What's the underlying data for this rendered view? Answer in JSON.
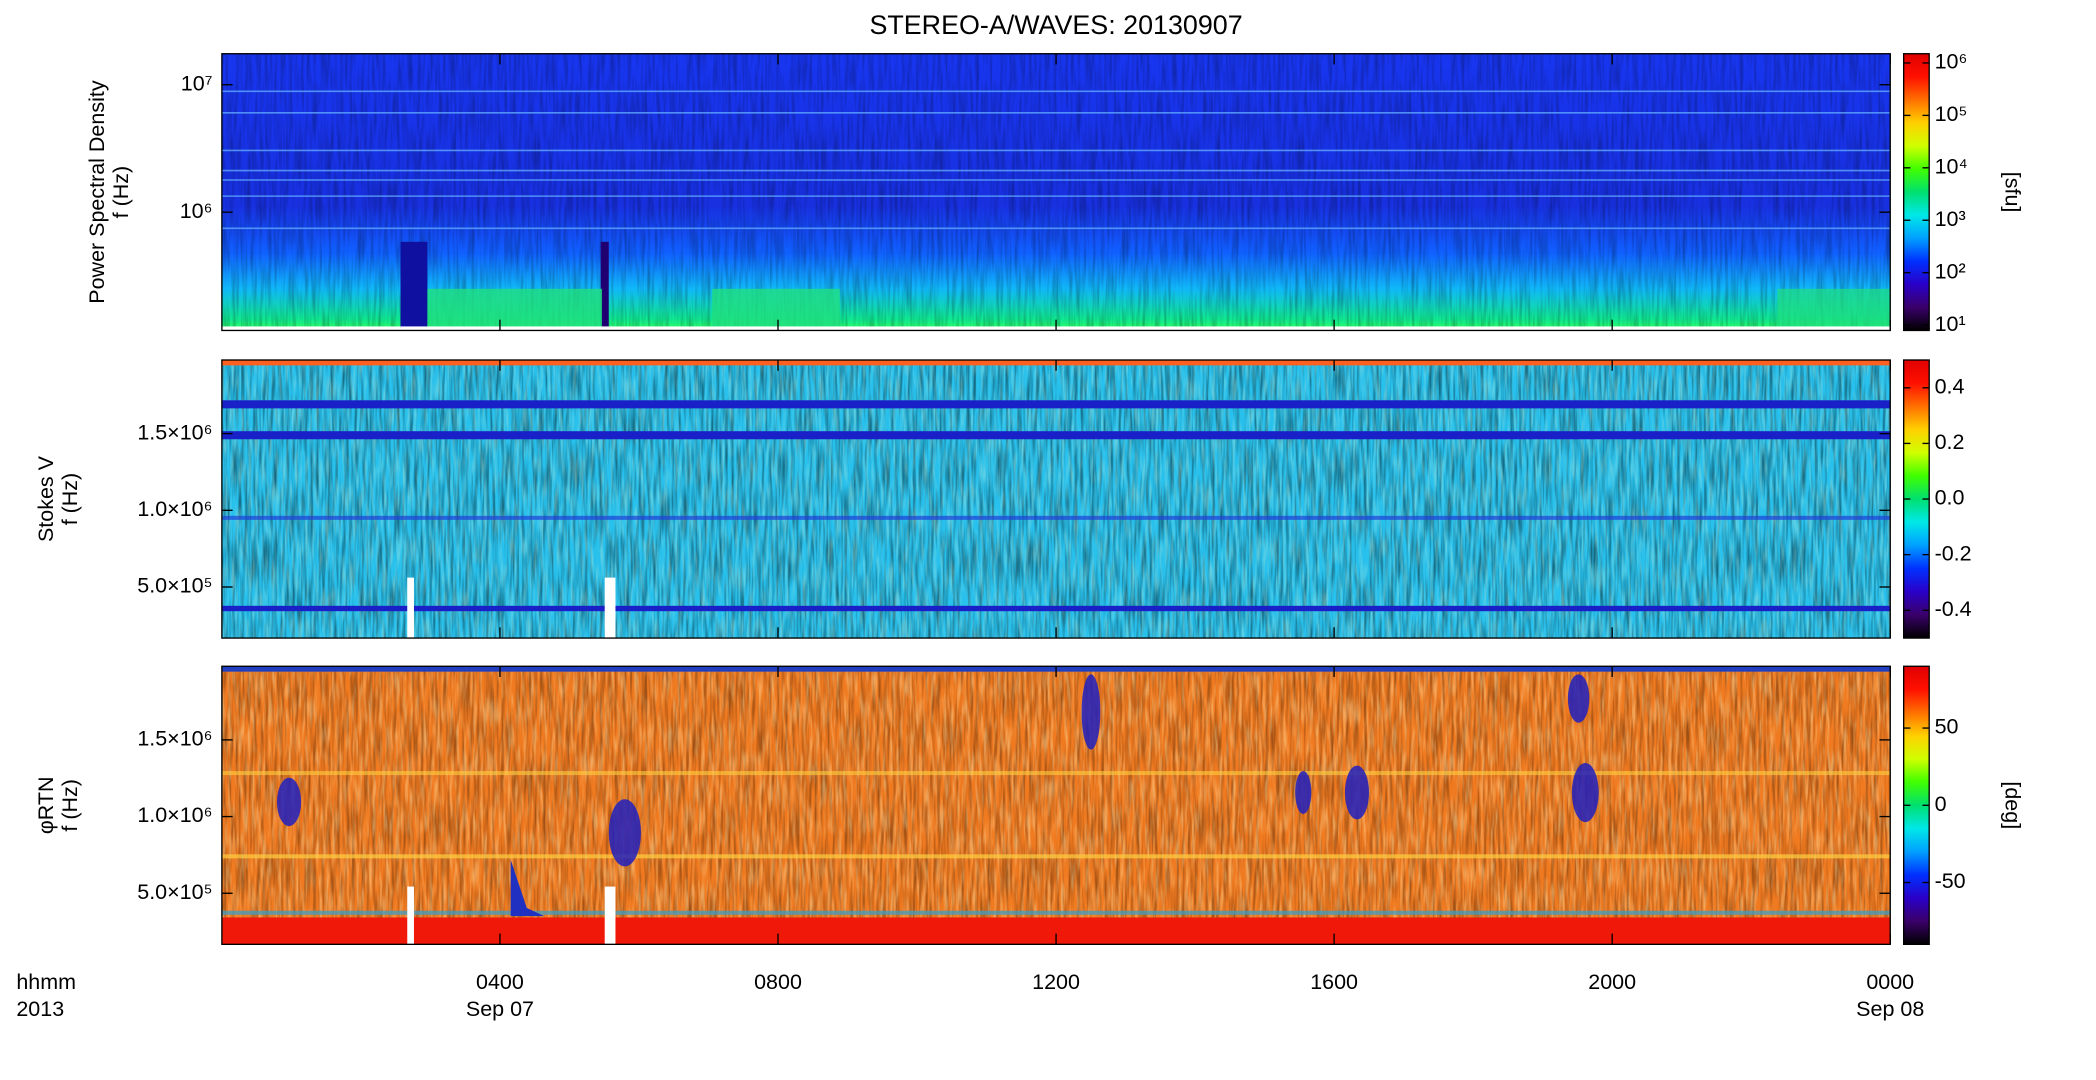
{
  "chart_data": [
    {
      "type": "heatmap",
      "title": "STEREO-A/WAVES: 20130907",
      "ylabel": [
        "Power Spectral Density",
        "f (Hz)"
      ],
      "xlim": [
        0,
        24
      ],
      "ylim": [
        118000,
        17500000
      ],
      "ylog": true,
      "yticks": [
        {
          "value": 1000000,
          "label": "10⁶"
        },
        {
          "value": 10000000,
          "label": "10⁷"
        }
      ],
      "colorbar": {
        "label": "[sfu]",
        "lim": [
          7.9,
          1500000
        ],
        "log": true,
        "ticks": [
          {
            "value": 10,
            "label": "10¹"
          },
          {
            "value": 100,
            "label": "10²"
          },
          {
            "value": 1000,
            "label": "10³"
          },
          {
            "value": 10000,
            "label": "10⁴"
          },
          {
            "value": 100000,
            "label": "10⁵"
          },
          {
            "value": 1000000,
            "label": "10⁶"
          }
        ]
      }
    },
    {
      "type": "heatmap",
      "ylabel": [
        "Stokes V",
        "f (Hz)"
      ],
      "xlim": [
        0,
        24
      ],
      "ylim": [
        167000,
        1980000
      ],
      "ylog": false,
      "yticks": [
        {
          "value": 500000,
          "label": "5.0×10⁵"
        },
        {
          "value": 1000000,
          "label": "1.0×10⁶"
        },
        {
          "value": 1500000,
          "label": "1.5×10⁶"
        }
      ],
      "colorbar": {
        "lim": [
          -0.5,
          0.5
        ],
        "log": false,
        "ticks": [
          -0.4,
          -0.2,
          {
            "value": 0,
            "label": "0.0"
          },
          0.2,
          0.4
        ]
      }
    },
    {
      "type": "heatmap",
      "ylabel": [
        "φRTN",
        "f (Hz)"
      ],
      "xlabel": [
        "hhmm",
        "2013"
      ],
      "xlim": [
        0,
        24
      ],
      "ylim": [
        167000,
        1980000
      ],
      "ylog": false,
      "xticks": [
        {
          "value": 4,
          "label": "0400",
          "date": "Sep 07"
        },
        {
          "value": 8,
          "label": "0800"
        },
        {
          "value": 12,
          "label": "1200"
        },
        {
          "value": 16,
          "label": "1600"
        },
        {
          "value": 20,
          "label": "2000"
        },
        {
          "value": 24,
          "label": "0000",
          "date": "Sep 08"
        }
      ],
      "yticks": [
        {
          "value": 500000,
          "label": "5.0×10⁵"
        },
        {
          "value": 1000000,
          "label": "1.0×10⁶"
        },
        {
          "value": 1500000,
          "label": "1.5×10⁶"
        }
      ],
      "colorbar": {
        "label": "[deg]",
        "lim": [
          -90,
          90
        ],
        "log": false,
        "ticks": [
          -50,
          0,
          50
        ]
      }
    }
  ],
  "colormap": [
    "#000000",
    "#3a006a",
    "#2a00c8",
    "#0030ff",
    "#00a0ff",
    "#00e8e8",
    "#00e070",
    "#40ff00",
    "#d0ff00",
    "#ffd000",
    "#ff7000",
    "#ff1000",
    "#e00000"
  ]
}
